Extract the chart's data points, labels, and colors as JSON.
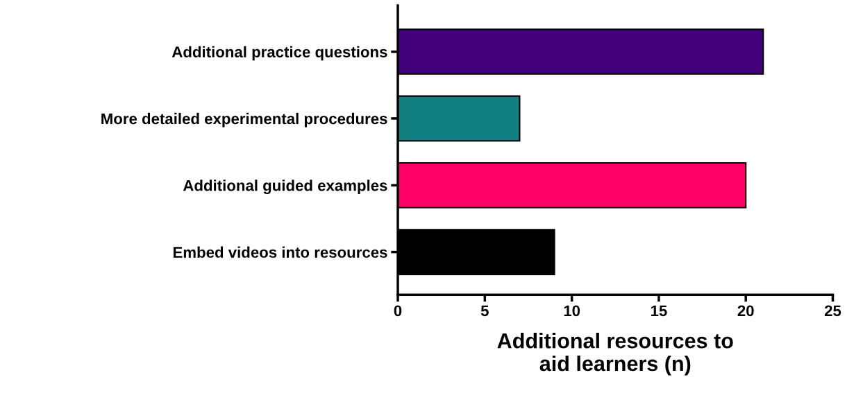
{
  "chart_data": {
    "type": "bar",
    "orientation": "horizontal",
    "categories": [
      "Additional practice questions",
      "More detailed experimental procedures",
      "Additional guided examples",
      "Embed videos into resources"
    ],
    "values": [
      21,
      7,
      20,
      9
    ],
    "colors": [
      "#42007a",
      "#128080",
      "#ff0066",
      "#000000"
    ],
    "xlabel": "Additional resources to\naid learners (n)",
    "xlim": [
      0,
      25
    ],
    "xticks": [
      0,
      5,
      10,
      15,
      20,
      25
    ],
    "grid": false,
    "legend": false
  }
}
